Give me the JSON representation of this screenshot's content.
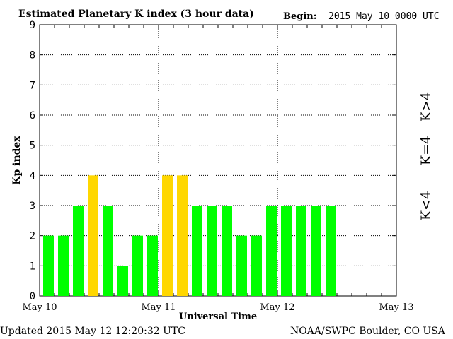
{
  "header": {
    "title": "Estimated Planetary K index (3 hour data)",
    "begin_label": "Begin:",
    "begin_value": "2015 May 10 0000 UTC"
  },
  "footer": {
    "updated": "Updated 2015 May 12 12:20:32 UTC",
    "credit": "NOAA/SWPC Boulder, CO USA"
  },
  "legend": {
    "gt4": "K>4",
    "eq4": "K=4",
    "lt4": "K<4"
  },
  "colors": {
    "low": "#00ff00",
    "mid": "#ffd700",
    "high": "#ff3300",
    "grid": "#000000"
  },
  "chart_data": {
    "type": "bar",
    "xlabel": "Universal Time",
    "ylabel": "Kp index",
    "ylim": [
      0,
      9
    ],
    "yticks": [
      "0",
      "1",
      "2",
      "3",
      "4",
      "5",
      "6",
      "7",
      "8",
      "9"
    ],
    "xticks": [
      "May 10",
      "May 11",
      "May 12",
      "May 13"
    ],
    "grid": true,
    "interval_hours": 3,
    "values": [
      2,
      2,
      3,
      4,
      3,
      1,
      2,
      2,
      4,
      4,
      3,
      3,
      3,
      2,
      2,
      3,
      3,
      3,
      3,
      3
    ],
    "colors": [
      "low",
      "low",
      "low",
      "mid",
      "low",
      "low",
      "low",
      "low",
      "mid",
      "mid",
      "low",
      "low",
      "low",
      "low",
      "low",
      "low",
      "low",
      "low",
      "low",
      "low"
    ]
  }
}
